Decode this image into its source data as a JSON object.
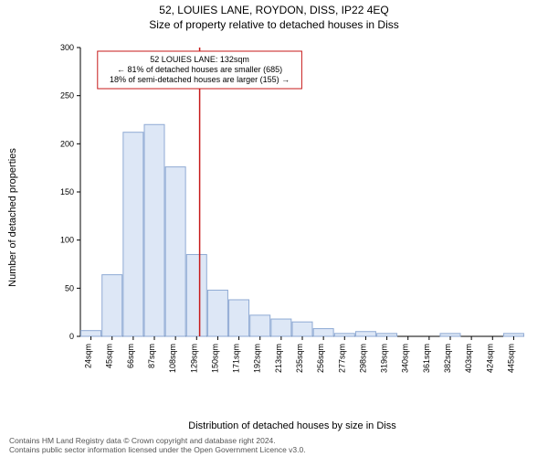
{
  "title1": "52, LOUIES LANE, ROYDON, DISS, IP22 4EQ",
  "title2": "Size of property relative to detached houses in Diss",
  "y_axis_label": "Number of detached properties",
  "x_axis_label": "Distribution of detached houses by size in Diss",
  "footer_line1": "Contains HM Land Registry data © Crown copyright and database right 2024.",
  "footer_line2": "Contains public sector information licensed under the Open Government Licence v3.0.",
  "chart": {
    "type": "bar",
    "y": {
      "min": 0,
      "max": 300,
      "tick_step": 50
    },
    "x_categories": [
      "24sqm",
      "45sqm",
      "66sqm",
      "87sqm",
      "108sqm",
      "129sqm",
      "150sqm",
      "171sqm",
      "192sqm",
      "213sqm",
      "235sqm",
      "256sqm",
      "277sqm",
      "298sqm",
      "319sqm",
      "340sqm",
      "361sqm",
      "382sqm",
      "403sqm",
      "424sqm",
      "445sqm"
    ],
    "values": [
      6,
      64,
      212,
      220,
      176,
      85,
      48,
      38,
      22,
      18,
      15,
      8,
      3,
      5,
      3,
      0,
      0,
      3,
      0,
      0,
      3
    ],
    "bar_fill": "#dde7f6",
    "bar_stroke": "#8faad4",
    "bar_width_ratio": 0.95,
    "background_color": "#ffffff",
    "axis_color": "#000000",
    "reference_line": {
      "x_value_sqm": 132,
      "color": "#c71a1a"
    },
    "annotation": {
      "border_color": "#c71a1a",
      "lines": [
        "52 LOUIES LANE: 132sqm",
        "← 81% of detached houses are smaller (685)",
        "18% of semi-detached houses are larger (155) →"
      ]
    },
    "fontsize_title": 12,
    "fontsize_axis_label": 11,
    "fontsize_tick": 9,
    "fontsize_annotation": 9
  }
}
